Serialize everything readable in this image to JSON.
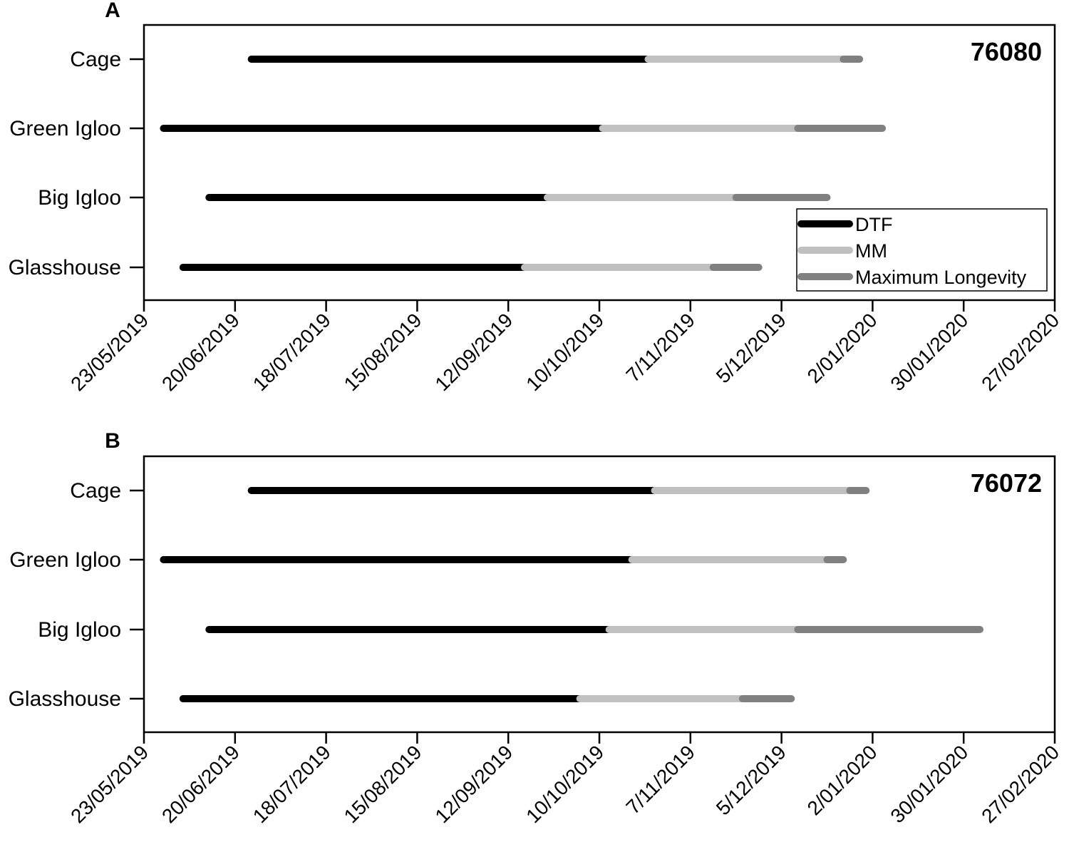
{
  "colors": {
    "DTF": "#000000",
    "MM": "#c0c0c0",
    "Maximum Longevity": "#808080"
  },
  "chart_data": [
    {
      "type": "bar",
      "orientation": "horizontal-floating",
      "panel_letter": "A",
      "title": "76080",
      "xlabel": "",
      "ylabel": "",
      "x_type": "date",
      "xlim": [
        "2019-05-23",
        "2020-02-27"
      ],
      "x_ticks": [
        "23/05/2019",
        "20/06/2019",
        "18/07/2019",
        "15/08/2019",
        "12/09/2019",
        "10/10/2019",
        "7/11/2019",
        "5/12/2019",
        "2/01/2020",
        "30/01/2020",
        "27/02/2020"
      ],
      "categories": [
        "Cage",
        "Green Igloo",
        "Big Igloo",
        "Glasshouse"
      ],
      "series": [
        {
          "name": "DTF",
          "start": [
            "2019-06-25",
            "2019-05-29",
            "2019-06-12",
            "2019-06-04"
          ],
          "end": [
            "2019-10-25",
            "2019-10-11",
            "2019-09-24",
            "2019-09-17"
          ]
        },
        {
          "name": "MM",
          "start": [
            "2019-10-25",
            "2019-10-11",
            "2019-09-24",
            "2019-09-17"
          ],
          "end": [
            "2019-12-24",
            "2019-12-10",
            "2019-11-21",
            "2019-11-14"
          ]
        },
        {
          "name": "Maximum Longevity",
          "start": [
            "2019-12-24",
            "2019-12-10",
            "2019-11-21",
            "2019-11-14"
          ],
          "end": [
            "2019-12-29",
            "2020-01-05",
            "2019-12-19",
            "2019-11-28"
          ]
        }
      ],
      "legend": {
        "entries": [
          "DTF",
          "MM",
          "Maximum Longevity"
        ],
        "position": "lower-right"
      },
      "grid": false
    },
    {
      "type": "bar",
      "orientation": "horizontal-floating",
      "panel_letter": "B",
      "title": "76072",
      "xlabel": "",
      "ylabel": "",
      "x_type": "date",
      "xlim": [
        "2019-05-23",
        "2020-02-27"
      ],
      "x_ticks": [
        "23/05/2019",
        "20/06/2019",
        "18/07/2019",
        "15/08/2019",
        "12/09/2019",
        "10/10/2019",
        "7/11/2019",
        "5/12/2019",
        "2/01/2020",
        "30/01/2020",
        "27/02/2020"
      ],
      "categories": [
        "Cage",
        "Green Igloo",
        "Big Igloo",
        "Glasshouse"
      ],
      "series": [
        {
          "name": "DTF",
          "start": [
            "2019-06-25",
            "2019-05-29",
            "2019-06-12",
            "2019-06-04"
          ],
          "end": [
            "2019-10-27",
            "2019-10-20",
            "2019-10-13",
            "2019-10-04"
          ]
        },
        {
          "name": "MM",
          "start": [
            "2019-10-27",
            "2019-10-20",
            "2019-10-13",
            "2019-10-04"
          ],
          "end": [
            "2019-12-26",
            "2019-12-19",
            "2019-12-10",
            "2019-11-23"
          ]
        },
        {
          "name": "Maximum Longevity",
          "start": [
            "2019-12-26",
            "2019-12-19",
            "2019-12-10",
            "2019-11-23"
          ],
          "end": [
            "2019-12-31",
            "2019-12-24",
            "2020-02-04",
            "2019-12-08"
          ]
        }
      ],
      "legend": null,
      "grid": false
    }
  ]
}
